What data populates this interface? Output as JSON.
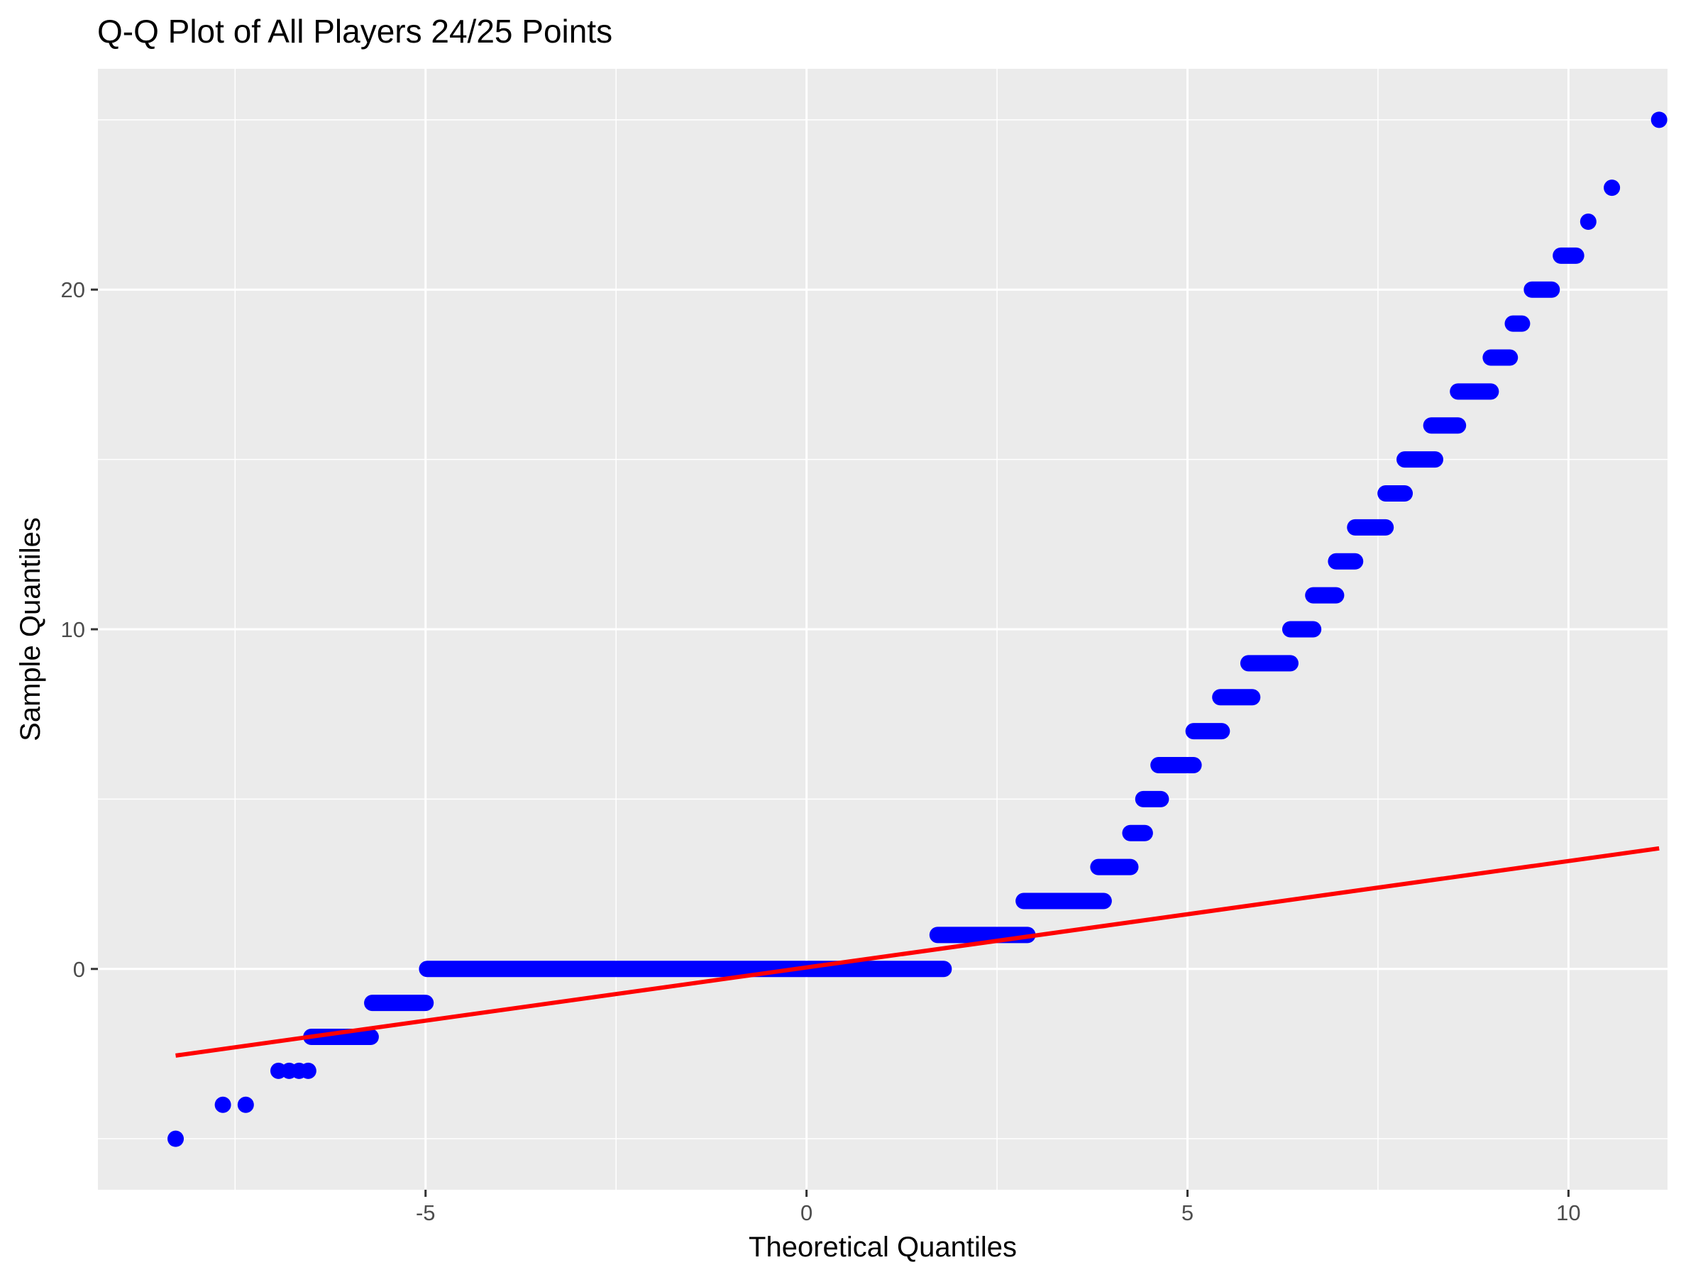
{
  "chart_data": {
    "type": "scatter",
    "title": "Q-Q Plot of All Players 24/25 Points",
    "xlabel": "Theoretical Quantiles",
    "ylabel": "Sample Quantiles",
    "xlim": [
      -9.3,
      11.3
    ],
    "ylim": [
      -6.5,
      26.5
    ],
    "x_ticks": [
      -5,
      0,
      5,
      10
    ],
    "x_tick_labels": [
      "-5",
      "0",
      "5",
      "10"
    ],
    "y_ticks": [
      0,
      10,
      20
    ],
    "y_tick_labels": [
      "0",
      "10",
      "20"
    ],
    "grid": true,
    "legend": "none",
    "colors": {
      "panel_background": "#EBEBEB",
      "grid": "#FFFFFF",
      "points": "#0000FF",
      "reference_line": "#FF0000"
    },
    "series": [
      {
        "kind": "points",
        "points": [
          {
            "x": -8.28,
            "y": -5
          },
          {
            "x": -7.66,
            "y": -4
          },
          {
            "x": -7.36,
            "y": -4
          },
          {
            "x": -6.93,
            "y": -3
          },
          {
            "x": -6.79,
            "y": -3
          },
          {
            "x": -6.66,
            "y": -3
          },
          {
            "x": -6.54,
            "y": -3
          }
        ],
        "runs": [
          {
            "x_start": -6.5,
            "x_end": -5.72,
            "y": -2
          },
          {
            "x_start": -5.7,
            "x_end": -5.0,
            "y": -1
          },
          {
            "x_start": -4.98,
            "x_end": 1.8,
            "y": 0
          },
          {
            "x_start": 1.72,
            "x_end": 2.9,
            "y": 1
          },
          {
            "x_start": 2.85,
            "x_end": 3.9,
            "y": 2
          },
          {
            "x_start": 3.83,
            "x_end": 4.25,
            "y": 3
          },
          {
            "x_start": 4.25,
            "x_end": 4.44,
            "y": 4
          },
          {
            "x_start": 4.42,
            "x_end": 4.65,
            "y": 5
          },
          {
            "x_start": 4.62,
            "x_end": 5.08,
            "y": 6
          },
          {
            "x_start": 5.08,
            "x_end": 5.45,
            "y": 7
          },
          {
            "x_start": 5.43,
            "x_end": 5.85,
            "y": 8
          },
          {
            "x_start": 5.8,
            "x_end": 6.35,
            "y": 9
          },
          {
            "x_start": 6.35,
            "x_end": 6.65,
            "y": 10
          },
          {
            "x_start": 6.65,
            "x_end": 6.95,
            "y": 11
          },
          {
            "x_start": 6.95,
            "x_end": 7.2,
            "y": 12
          },
          {
            "x_start": 7.2,
            "x_end": 7.6,
            "y": 13
          },
          {
            "x_start": 7.6,
            "x_end": 7.85,
            "y": 14
          },
          {
            "x_start": 7.85,
            "x_end": 8.25,
            "y": 15
          },
          {
            "x_start": 8.2,
            "x_end": 8.55,
            "y": 16
          },
          {
            "x_start": 8.55,
            "x_end": 8.98,
            "y": 17
          },
          {
            "x_start": 8.98,
            "x_end": 9.23,
            "y": 18
          },
          {
            "x_start": 9.27,
            "x_end": 9.39,
            "y": 19
          },
          {
            "x_start": 9.52,
            "x_end": 9.78,
            "y": 20
          },
          {
            "x_start": 9.9,
            "x_end": 10.1,
            "y": 21
          }
        ],
        "tail_points": [
          {
            "x": 10.26,
            "y": 22
          },
          {
            "x": 10.57,
            "y": 23
          },
          {
            "x": 11.19,
            "y": 25
          }
        ]
      },
      {
        "kind": "line",
        "points": [
          {
            "x": -8.28,
            "y": -2.55
          },
          {
            "x": 11.19,
            "y": 3.55
          }
        ]
      }
    ]
  }
}
